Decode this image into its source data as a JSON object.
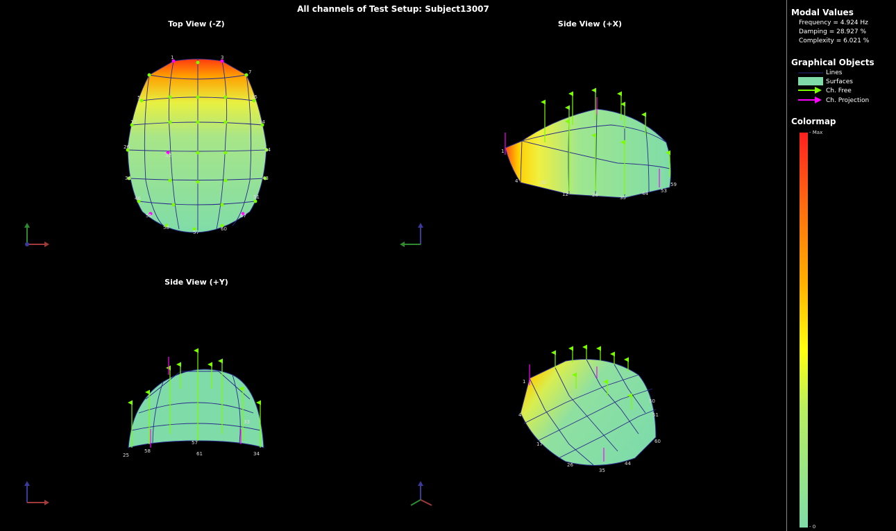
{
  "title": "All channels of Test Setup: Subject13007",
  "views": {
    "top": "Top View (-Z)",
    "side_x": "Side View (+X)",
    "side_y": "Side View (+Y)"
  },
  "legend": {
    "modal_heading": "Modal Values",
    "frequency": "Frequency = 4.924 Hz",
    "damping": "Damping = 28.927 %",
    "complexity": "Complexity = 6.021 %",
    "graphics_heading": "Graphical Objects",
    "lines": "Lines",
    "surfaces": "Surfaces",
    "ch_free": "Ch. Free",
    "ch_projection": "Ch. Projection",
    "colormap_heading": "Colormap",
    "max_label": "- Max",
    "min_label": "- 0"
  },
  "colors": {
    "background": "#000000",
    "surface": "#7fdca8",
    "hot": "#ff3a10",
    "mid": "#ffff20",
    "ch_free": "#7cfc00",
    "ch_projection": "#ff00ff",
    "mesh_line": "#2a2a8a"
  },
  "icons": [
    "axis-triad-icon",
    "arrow-free-icon",
    "arrow-projection-icon"
  ]
}
